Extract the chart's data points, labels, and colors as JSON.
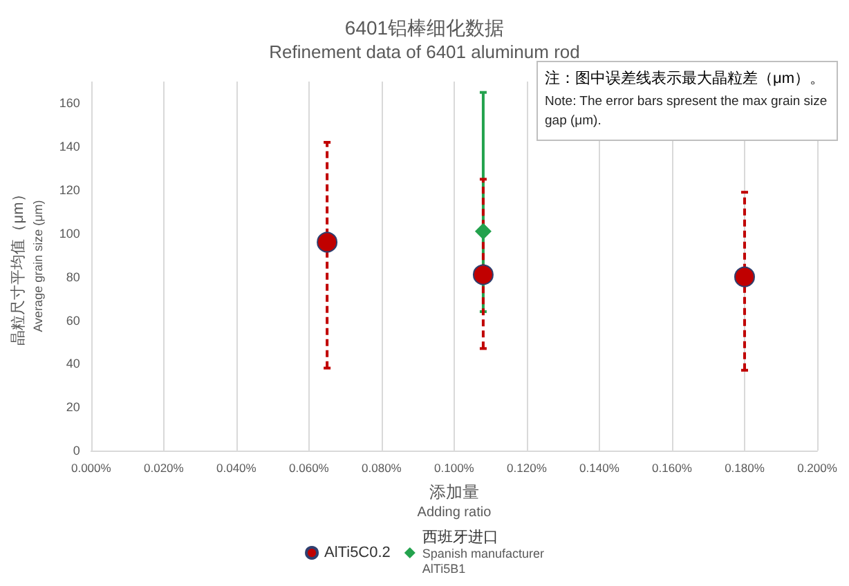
{
  "chart_data": {
    "type": "scatter",
    "title": "6401铝棒细化数据",
    "subtitle": "Refinement data of 6401 aluminum rod",
    "xlabel": "添加量\nAdding ratio",
    "ylabel": "晶粒尺寸平均值（μm）\nAverage grain size (μm)",
    "annotations": [
      "注：图中误差线表示最大晶粒差（μm）。",
      "Note: The error bars spresent the max grain size gap (μm)."
    ],
    "series": [
      {
        "name": "AlTi5C0.2",
        "color": "#c00000",
        "marker": "circle",
        "line_style": "dashed",
        "x": [
          0.065,
          0.108,
          0.18
        ],
        "values": [
          96,
          81,
          80
        ],
        "errors": [
          [
            38,
            142
          ],
          [
            47,
            125
          ],
          [
            37,
            119
          ]
        ]
      },
      {
        "name": "西班牙进口\nSpanish manufacturer\nAlTi5B1",
        "color": "#23a24d",
        "marker": "diamond",
        "line_style": "solid",
        "x": [
          0.108
        ],
        "values": [
          101
        ],
        "errors": [
          [
            64,
            165
          ]
        ]
      }
    ],
    "xlim": [
      0,
      0.2
    ],
    "xticks": [
      {
        "value": 0,
        "label": "0.000%"
      },
      {
        "value": 0.02,
        "label": "0.020%"
      },
      {
        "value": 0.04,
        "label": "0.040%"
      },
      {
        "value": 0.06,
        "label": "0.060%"
      },
      {
        "value": 0.08,
        "label": "0.080%"
      },
      {
        "value": 0.1,
        "label": "0.100%"
      },
      {
        "value": 0.12,
        "label": "0.120%"
      },
      {
        "value": 0.14,
        "label": "0.140%"
      },
      {
        "value": 0.16,
        "label": "0.160%"
      },
      {
        "value": 0.18,
        "label": "0.180%"
      },
      {
        "value": 0.2,
        "label": "0.200%"
      }
    ],
    "ylim": [
      0,
      170
    ],
    "yticks": [
      0,
      20,
      40,
      60,
      80,
      100,
      120,
      140,
      160
    ],
    "grid": "x",
    "legend": "bottom"
  }
}
